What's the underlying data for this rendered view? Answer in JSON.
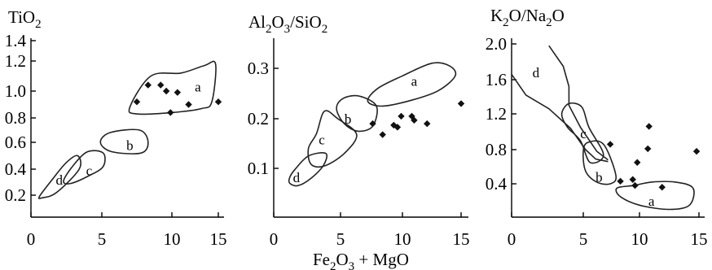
{
  "chart_data": [
    {
      "type": "scatter",
      "title_main": "TiO",
      "title_sub": "2",
      "x_ticks": [
        "0",
        "5",
        "10",
        "15"
      ],
      "y_ticks": [
        "1.4",
        "1.2",
        "1.0",
        "0.8",
        "0.6",
        "0.4",
        "0.2"
      ],
      "xlim": [
        0,
        16
      ],
      "ylim": [
        0.1,
        1.45
      ],
      "points": [
        [
          7.5,
          0.92
        ],
        [
          8.3,
          1.04
        ],
        [
          9.2,
          1.04
        ],
        [
          9.6,
          1.0
        ],
        [
          9.9,
          0.84
        ],
        [
          10.6,
          0.99
        ],
        [
          11.8,
          0.9
        ],
        [
          15.0,
          0.92
        ]
      ],
      "fields": [
        {
          "label": "a",
          "label_at": [
            12.8,
            1.03
          ],
          "outline": [
            [
              7.0,
              0.88
            ],
            [
              8.5,
              1.1
            ],
            [
              11.0,
              1.12
            ],
            [
              13.5,
              1.17
            ],
            [
              14.7,
              1.18
            ],
            [
              14.3,
              0.92
            ],
            [
              13.2,
              0.87
            ],
            [
              10.0,
              0.84
            ],
            [
              7.5,
              0.83
            ]
          ]
        },
        {
          "label": "b",
          "label_at": [
            7.0,
            0.58
          ],
          "outline": [
            [
              4.9,
              0.6
            ],
            [
              5.6,
              0.68
            ],
            [
              7.7,
              0.7
            ],
            [
              8.3,
              0.6
            ],
            [
              7.8,
              0.52
            ],
            [
              5.7,
              0.53
            ]
          ]
        },
        {
          "label": "c",
          "label_at": [
            4.1,
            0.39
          ],
          "outline": [
            [
              2.3,
              0.31
            ],
            [
              3.0,
              0.43
            ],
            [
              4.0,
              0.53
            ],
            [
              5.1,
              0.52
            ],
            [
              5.1,
              0.42
            ],
            [
              4.1,
              0.35
            ],
            [
              2.8,
              0.29
            ]
          ]
        },
        {
          "label": "d",
          "label_at": [
            2.0,
            0.32
          ],
          "outline": [
            [
              0.6,
              0.19
            ],
            [
              1.5,
              0.32
            ],
            [
              2.5,
              0.45
            ],
            [
              3.3,
              0.5
            ],
            [
              3.4,
              0.4
            ],
            [
              1.8,
              0.22
            ],
            [
              0.8,
              0.18
            ]
          ]
        }
      ]
    },
    {
      "type": "scatter",
      "title_main": "Al",
      "title_sub1": "2",
      "title_mid": "O",
      "title_sub2": "3",
      "title_mid2": "/SiO",
      "title_sub3": "2",
      "x_ticks": [
        "0",
        "5",
        "10",
        "15"
      ],
      "y_ticks": [
        "0.3",
        "0.2",
        "0.1"
      ],
      "xlim": [
        0,
        16
      ],
      "ylim": [
        0.05,
        0.33
      ],
      "points": [
        [
          7.6,
          0.19
        ],
        [
          8.4,
          0.168
        ],
        [
          9.3,
          0.187
        ],
        [
          9.6,
          0.183
        ],
        [
          9.9,
          0.205
        ],
        [
          10.8,
          0.205
        ],
        [
          11.0,
          0.197
        ],
        [
          12.1,
          0.19
        ],
        [
          15.0,
          0.23
        ]
      ],
      "fields": [
        {
          "label": "a",
          "label_at": [
            11.0,
            0.275
          ],
          "outline": [
            [
              7.2,
              0.235
            ],
            [
              8.0,
              0.26
            ],
            [
              10.0,
              0.285
            ],
            [
              12.5,
              0.31
            ],
            [
              14.0,
              0.305
            ],
            [
              14.5,
              0.285
            ],
            [
              13.0,
              0.255
            ],
            [
              10.5,
              0.235
            ],
            [
              8.3,
              0.225
            ]
          ]
        },
        {
          "label": "b",
          "label_at": [
            5.6,
            0.2
          ],
          "outline": [
            [
              4.7,
              0.22
            ],
            [
              5.2,
              0.24
            ],
            [
              6.5,
              0.245
            ],
            [
              7.9,
              0.225
            ],
            [
              7.6,
              0.185
            ],
            [
              6.4,
              0.175
            ],
            [
              5.3,
              0.19
            ]
          ]
        },
        {
          "label": "c",
          "label_at": [
            3.6,
            0.158
          ],
          "outline": [
            [
              2.6,
              0.14
            ],
            [
              3.2,
              0.17
            ],
            [
              3.8,
              0.215
            ],
            [
              4.8,
              0.2
            ],
            [
              6.3,
              0.168
            ],
            [
              5.3,
              0.13
            ],
            [
              3.8,
              0.105
            ],
            [
              2.8,
              0.108
            ]
          ]
        },
        {
          "label": "d",
          "label_at": [
            1.7,
            0.082
          ],
          "outline": [
            [
              1.2,
              0.082
            ],
            [
              1.6,
              0.098
            ],
            [
              2.6,
              0.125
            ],
            [
              3.9,
              0.13
            ],
            [
              3.7,
              0.105
            ],
            [
              2.7,
              0.078
            ],
            [
              1.8,
              0.065
            ],
            [
              1.2,
              0.07
            ]
          ]
        }
      ]
    },
    {
      "type": "scatter",
      "title_main": "K",
      "title_sub1": "2",
      "title_mid": "O/Na",
      "title_sub2": "2",
      "title_end": "O",
      "x_ticks": [
        "0",
        "5",
        "10",
        "15"
      ],
      "y_ticks": [
        "2.0",
        "1.6",
        "1.2",
        "0.8",
        "0.4"
      ],
      "xlim": [
        0,
        16
      ],
      "ylim": [
        0.05,
        2.08
      ],
      "points": [
        [
          7.4,
          0.86
        ],
        [
          8.3,
          0.43
        ],
        [
          9.4,
          0.45
        ],
        [
          9.6,
          0.38
        ],
        [
          9.8,
          0.65
        ],
        [
          10.7,
          0.81
        ],
        [
          10.8,
          1.06
        ],
        [
          11.9,
          0.36
        ],
        [
          14.8,
          0.78
        ]
      ],
      "fields": [
        {
          "label": "a",
          "label_at": [
            11.0,
            0.2
          ],
          "outline": [
            [
              8.0,
              0.35
            ],
            [
              9.5,
              0.38
            ],
            [
              11.0,
              0.42
            ],
            [
              13.0,
              0.42
            ],
            [
              14.5,
              0.35
            ],
            [
              14.2,
              0.15
            ],
            [
              12.5,
              0.1
            ],
            [
              10.0,
              0.15
            ],
            [
              8.3,
              0.25
            ]
          ]
        },
        {
          "label": "b",
          "label_at": [
            6.4,
            0.48
          ],
          "outline": [
            [
              5.0,
              0.78
            ],
            [
              5.4,
              0.88
            ],
            [
              6.8,
              0.86
            ],
            [
              7.9,
              0.5
            ],
            [
              7.4,
              0.4
            ],
            [
              6.2,
              0.42
            ],
            [
              5.2,
              0.55
            ]
          ]
        },
        {
          "label": "c",
          "label_at": [
            5.0,
            0.98
          ],
          "outline": [
            [
              3.5,
              1.2
            ],
            [
              4.0,
              1.32
            ],
            [
              4.9,
              1.28
            ],
            [
              5.5,
              1.05
            ],
            [
              6.8,
              0.74
            ],
            [
              5.6,
              0.65
            ],
            [
              4.8,
              0.9
            ],
            [
              3.9,
              1.05
            ]
          ]
        },
        {
          "label": "d",
          "label_at": [
            1.7,
            1.68
          ],
          "line": [
            [
              0.0,
              1.66
            ],
            [
              1.0,
              1.42
            ],
            [
              2.6,
              1.26
            ],
            [
              4.1,
              1.04
            ],
            [
              5.2,
              0.8
            ],
            [
              6.1,
              0.69
            ],
            [
              7.2,
              0.66
            ]
          ]
        }
      ],
      "boundary_line": [
        [
          2.6,
          1.98
        ],
        [
          3.6,
          1.75
        ],
        [
          4.0,
          1.52
        ],
        [
          4.0,
          1.3
        ],
        [
          4.8,
          1.05
        ],
        [
          6.2,
          0.78
        ],
        [
          7.2,
          0.68
        ]
      ]
    }
  ],
  "shared_xlabel": {
    "main": "Fe",
    "sub1": "2",
    "mid": "O",
    "sub2": "3",
    "end": " + MgO"
  }
}
